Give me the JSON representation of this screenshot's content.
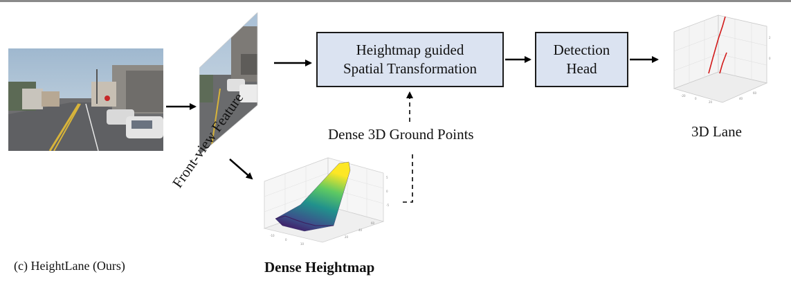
{
  "modules": {
    "spatial_transform": {
      "line1": "Heightmap guided",
      "line2": "Spatial Transformation"
    },
    "detection_head": {
      "line1": "Detection",
      "line2": "Head"
    }
  },
  "labels": {
    "front_view_feature": "Front-view Feature",
    "dense_ground_points": "Dense 3D Ground Points",
    "lane_output": "3D Lane",
    "dense_heightmap": "Dense Heightmap",
    "caption": "(c) HeightLane (Ours)"
  },
  "colors": {
    "module_fill": "#dbe3f1",
    "lane_line": "#d21a1a",
    "arrow": "#000000"
  },
  "icons": {
    "input_image": "street-photo",
    "feature_map": "front-view-feature-map",
    "heightmap": "3d-surface-plot",
    "lane_output": "3d-lane-plot"
  }
}
